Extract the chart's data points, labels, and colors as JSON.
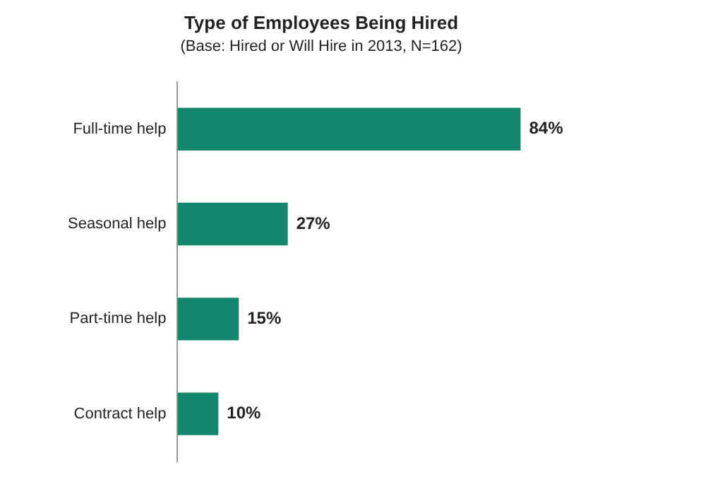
{
  "chart_data": {
    "type": "bar",
    "orientation": "horizontal",
    "title": "Type of Employees Being Hired",
    "subtitle": "(Base: Hired or Will Hire in 2013, N=162)",
    "categories": [
      "Full-time help",
      "Seasonal help",
      "Part-time help",
      "Contract help"
    ],
    "values": [
      84,
      27,
      15,
      10
    ],
    "value_labels": [
      "84%",
      "27%",
      "15%",
      "10%"
    ],
    "color": "#13876b"
  }
}
